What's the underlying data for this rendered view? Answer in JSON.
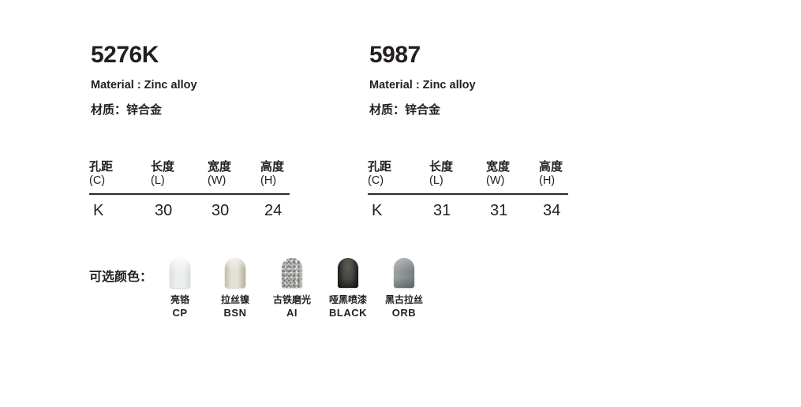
{
  "page": {
    "background": "#ffffff",
    "text_color": "#231f20"
  },
  "products": [
    {
      "model": "5276K",
      "material_en": "Material : Zinc alloy",
      "material_cn": "材质：锌合金",
      "spec_table": {
        "headers": [
          {
            "cn": "孔距",
            "code": "(C)"
          },
          {
            "cn": "长度",
            "code": "(L)"
          },
          {
            "cn": "宽度",
            "code": "(W)"
          },
          {
            "cn": "高度",
            "code": "(H)"
          }
        ],
        "values": [
          "K",
          "30",
          "30",
          "24"
        ]
      }
    },
    {
      "model": "5987",
      "material_en": "Material : Zinc alloy",
      "material_cn": "材质：锌合金",
      "spec_table": {
        "headers": [
          {
            "cn": "孔距",
            "code": "(C)"
          },
          {
            "cn": "长度",
            "code": "(L)"
          },
          {
            "cn": "宽度",
            "code": "(W)"
          },
          {
            "cn": "高度",
            "code": "(H)"
          }
        ],
        "values": [
          "K",
          "31",
          "31",
          "34"
        ]
      }
    }
  ],
  "finishes": {
    "label": "可选颜色：",
    "items": [
      {
        "name_cn": "亮铬",
        "code": "CP",
        "swatch_color": "#eef0f0"
      },
      {
        "name_cn": "拉丝镍",
        "code": "BSN",
        "swatch_color": "#e4e1d4"
      },
      {
        "name_cn": "古铁磨光",
        "code": "AI",
        "swatch_color": "#b4b4b2"
      },
      {
        "name_cn": "哑黑喷漆",
        "code": "BLACK",
        "swatch_color": "#3c3c38"
      },
      {
        "name_cn": "黑古拉丝",
        "code": "ORB",
        "swatch_color": "#8e9496"
      }
    ]
  }
}
